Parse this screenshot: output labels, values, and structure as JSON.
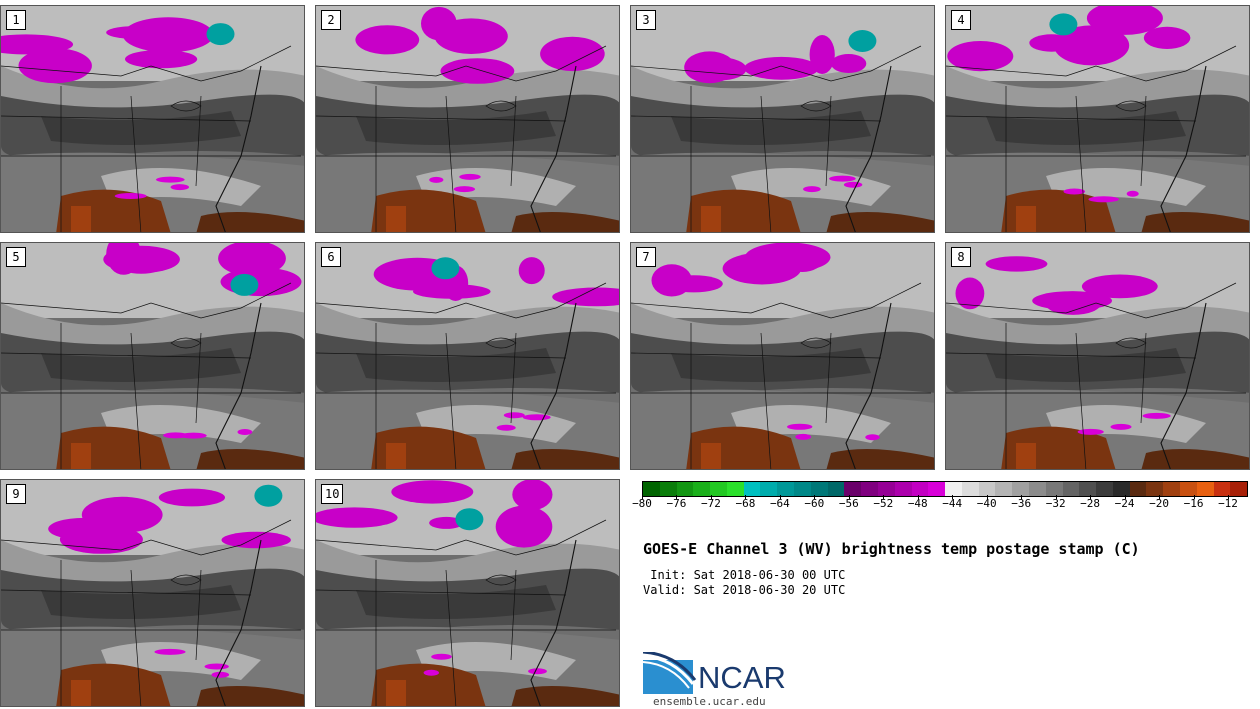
{
  "panels": [
    {
      "label": "1"
    },
    {
      "label": "2"
    },
    {
      "label": "3"
    },
    {
      "label": "4"
    },
    {
      "label": "5"
    },
    {
      "label": "6"
    },
    {
      "label": "7"
    },
    {
      "label": "8"
    },
    {
      "label": "9"
    },
    {
      "label": "10"
    }
  ],
  "colorbar": {
    "ticks": [
      "−80",
      "−76",
      "−72",
      "−68",
      "−64",
      "−60",
      "−56",
      "−52",
      "−48",
      "−44",
      "−40",
      "−36",
      "−32",
      "−28",
      "−24",
      "−20",
      "−16",
      "−12"
    ],
    "colors": [
      "#006400",
      "#0a7d0a",
      "#129612",
      "#1aaf1a",
      "#22c822",
      "#2be02b",
      "#00c0c0",
      "#00acac",
      "#009898",
      "#008888",
      "#007878",
      "#006868",
      "#6a006a",
      "#800080",
      "#960096",
      "#ac00ac",
      "#c200c2",
      "#d800d8",
      "#f0f0f0",
      "#dcdcdc",
      "#c8c8c8",
      "#b4b4b4",
      "#a0a0a0",
      "#8c8c8c",
      "#787878",
      "#646464",
      "#505050",
      "#3c3c3c",
      "#2a2a2a",
      "#5a2a10",
      "#7a3410",
      "#a04010",
      "#c85010",
      "#e86010",
      "#c83010",
      "#a82008"
    ]
  },
  "title": "GOES-E Channel 3 (WV) brightness temp postage stamp (C)",
  "init": " Init: Sat 2018-06-30 00 UTC",
  "valid": "Valid: Sat 2018-06-30 20 UTC",
  "logo": {
    "wordmark": "NCAR",
    "url": "ensemble.ucar.edu"
  }
}
